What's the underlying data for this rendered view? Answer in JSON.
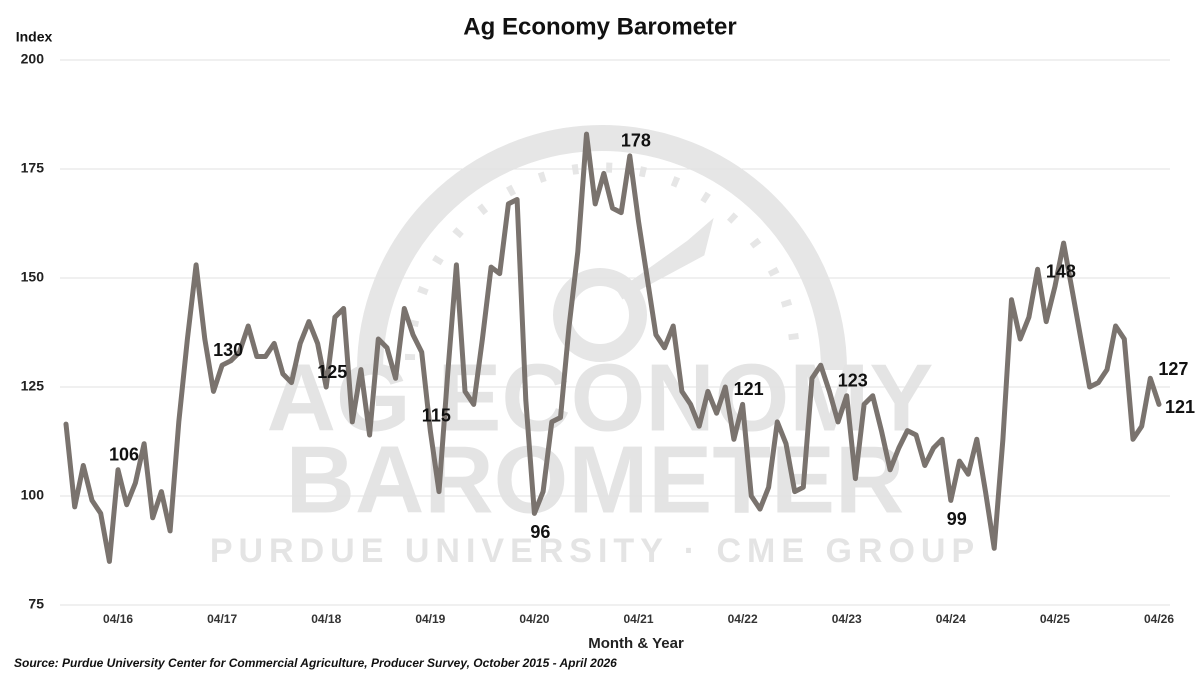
{
  "chart_data": {
    "type": "line",
    "title": "Ag Economy Barometer",
    "y_label": "Index",
    "x_label": "Month & Year",
    "source": "Source: Purdue University Center for Commercial Agriculture, Producer Survey, October 2015 - April 2026",
    "watermark": [
      "AG ECONOMY",
      "BAROMETER",
      "PURDUE UNIVERSITY  ·  CME GROUP"
    ],
    "categories": [
      null,
      null,
      null,
      null,
      null,
      null,
      "04/16",
      null,
      null,
      null,
      null,
      null,
      null,
      null,
      null,
      null,
      null,
      null,
      "04/17",
      null,
      null,
      null,
      null,
      null,
      null,
      null,
      null,
      null,
      null,
      null,
      "04/18",
      null,
      null,
      null,
      null,
      null,
      null,
      null,
      null,
      null,
      null,
      null,
      "04/19",
      null,
      null,
      null,
      null,
      null,
      null,
      null,
      null,
      null,
      null,
      null,
      "04/20",
      null,
      null,
      null,
      null,
      null,
      null,
      null,
      null,
      null,
      null,
      null,
      "04/21",
      null,
      null,
      null,
      null,
      null,
      null,
      null,
      null,
      null,
      null,
      null,
      "04/22",
      null,
      null,
      null,
      null,
      null,
      null,
      null,
      null,
      null,
      null,
      null,
      "04/23",
      null,
      null,
      null,
      null,
      null,
      null,
      null,
      null,
      null,
      null,
      null,
      "04/24",
      null,
      null,
      null,
      null,
      null,
      null,
      null,
      null,
      null,
      null,
      null,
      "04/25",
      null,
      null,
      null,
      null,
      null,
      null,
      null,
      null,
      null,
      null,
      null,
      "04/26"
    ],
    "values": [
      116.5,
      97.5,
      107,
      99,
      96,
      85,
      106,
      98,
      103,
      112,
      95,
      101,
      92,
      117,
      136,
      153,
      136,
      124,
      130,
      131,
      133,
      139,
      132,
      132,
      135,
      128,
      126,
      135,
      140,
      135,
      125,
      141,
      143,
      117,
      129,
      114,
      136,
      134,
      127,
      143,
      137,
      133,
      115,
      101,
      128,
      153,
      124,
      121,
      136,
      152.5,
      151,
      167,
      168,
      122,
      96,
      101,
      117,
      118,
      139,
      156,
      183,
      167,
      174,
      166,
      165,
      178,
      163,
      150,
      137,
      134,
      139,
      124,
      121,
      116,
      124,
      119,
      125,
      113,
      121,
      100,
      97,
      102,
      117,
      112,
      101,
      102,
      127,
      130,
      124,
      117,
      123,
      104,
      121,
      123,
      115,
      106,
      111,
      115,
      114,
      107,
      111,
      113,
      99,
      108,
      105,
      113,
      101,
      88,
      113,
      145,
      136,
      141,
      152,
      140,
      148,
      158,
      147,
      136,
      125,
      126,
      129,
      139,
      136,
      113,
      116,
      127,
      121
    ],
    "labeled": [
      6,
      18,
      30,
      42,
      54,
      65,
      78,
      90,
      102,
      114,
      125,
      126
    ],
    "color": "#7a736e",
    "ylim": [
      75,
      200
    ],
    "yticks": [
      75,
      100,
      125,
      150,
      175,
      200
    ],
    "grid": true
  }
}
